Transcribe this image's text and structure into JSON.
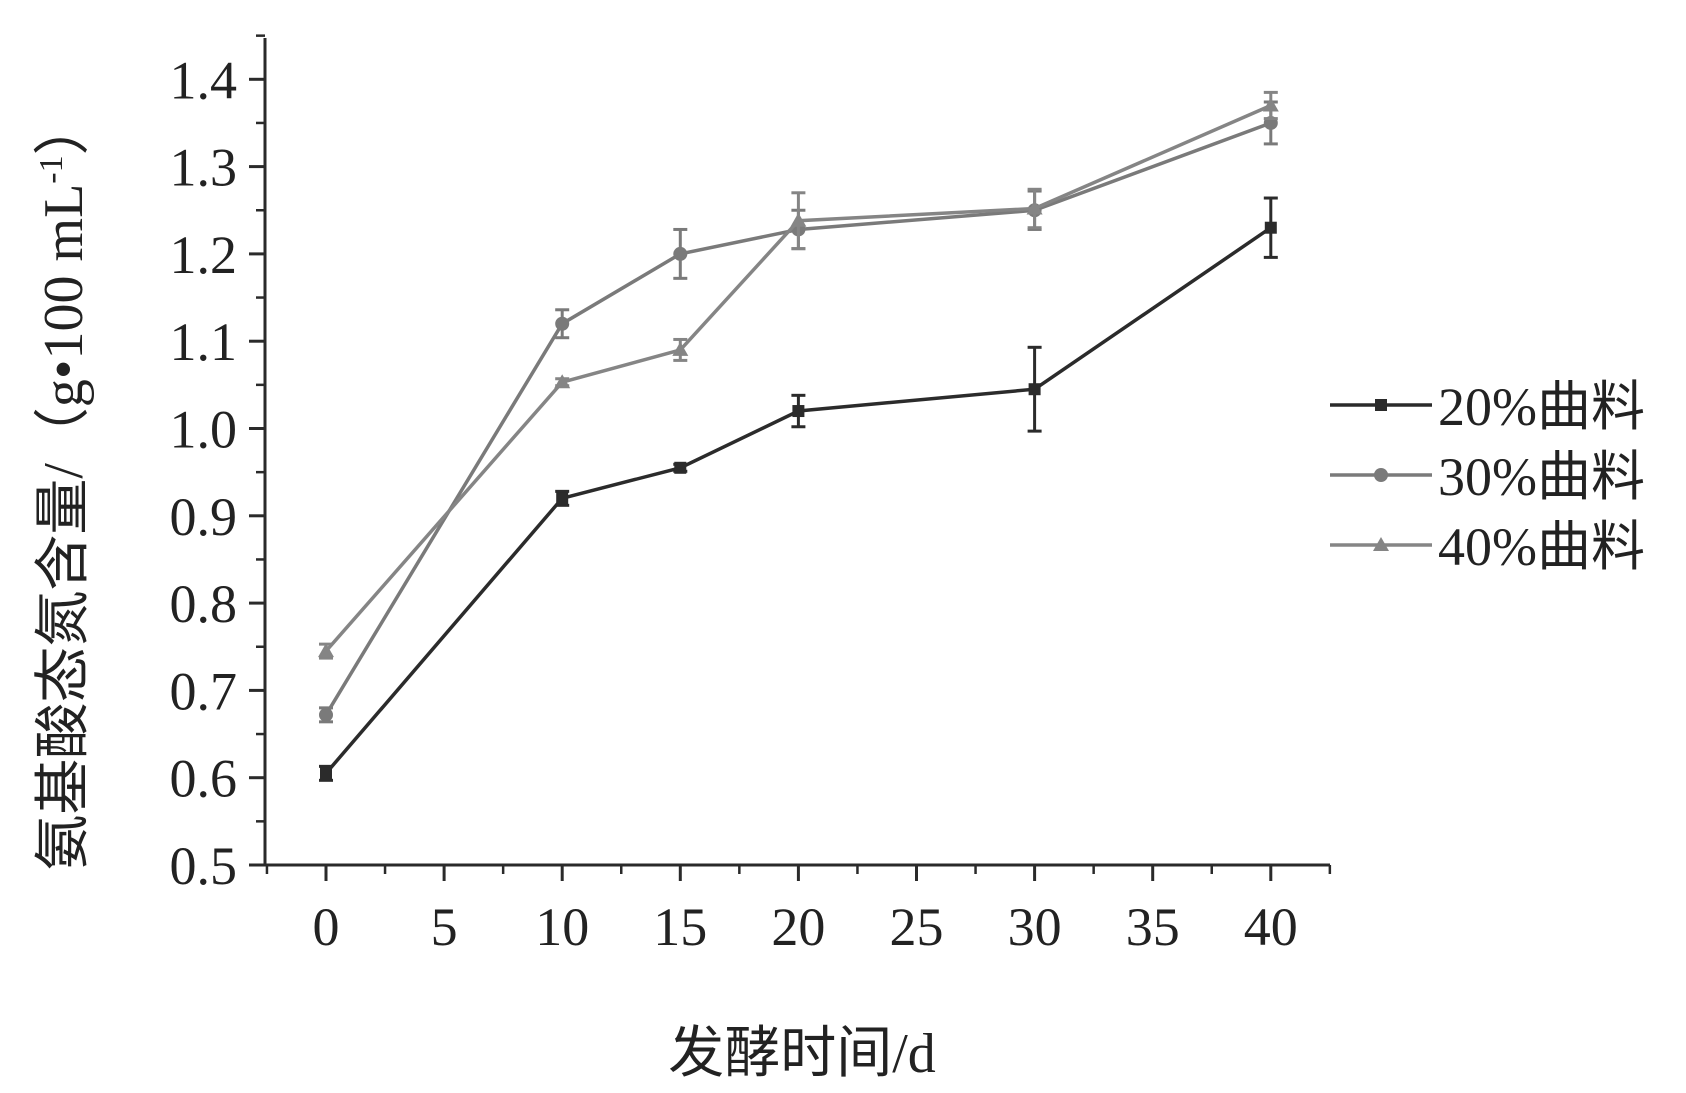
{
  "chart_data": {
    "type": "line",
    "xlabel": "发酵时间/d",
    "ylabel": "氨基酸态氮含量/（g•100 mL",
    "ylabel_superscript": "-1",
    "ylabel_close": "）",
    "x_ticks": [
      "0",
      "5",
      "10",
      "15",
      "20",
      "25",
      "30",
      "35",
      "40"
    ],
    "y_ticks": [
      "0.5",
      "0.6",
      "0.7",
      "0.8",
      "0.9",
      "1.0",
      "1.1",
      "1.2",
      "1.3",
      "1.4"
    ],
    "xlim": [
      -2.5,
      42.5
    ],
    "ylim": [
      0.5,
      1.45
    ],
    "legend_position": "right",
    "x": [
      0,
      10,
      15,
      20,
      30,
      40
    ],
    "series": [
      {
        "name": "20%曲料",
        "marker": "square",
        "color": "#2b2b2b",
        "values": [
          0.605,
          0.92,
          0.955,
          1.02,
          1.045,
          1.23
        ],
        "errors": [
          0.008,
          0.008,
          0.004,
          0.018,
          0.048,
          0.034
        ]
      },
      {
        "name": "30%曲料",
        "marker": "circle",
        "color": "#7a7a7a",
        "values": [
          0.672,
          1.12,
          1.2,
          1.228,
          1.25,
          1.35
        ],
        "errors": [
          0.008,
          0.016,
          0.028,
          0.022,
          0.022,
          0.024
        ]
      },
      {
        "name": "40%曲料",
        "marker": "triangle",
        "color": "#858585",
        "values": [
          0.745,
          1.053,
          1.09,
          1.238,
          1.252,
          1.37
        ],
        "errors": [
          0.008,
          0.004,
          0.012,
          0.032,
          0.022,
          0.015
        ]
      }
    ]
  }
}
